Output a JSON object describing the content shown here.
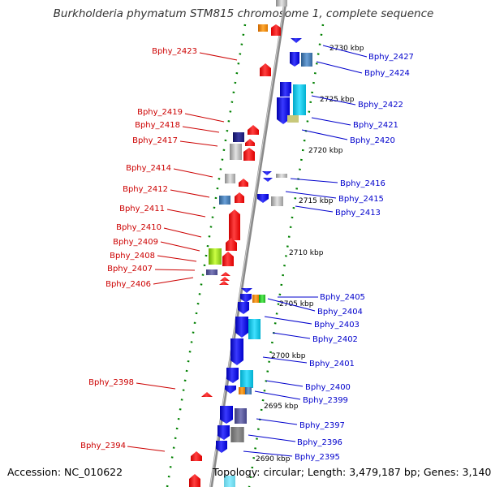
{
  "title": "Burkholderia phymatum STM815 chromosome 1, complete sequence",
  "footer": {
    "accession": "Accession: NC_010622",
    "topology": "Topology: circular; Length: 3,479,187 bp; Genes: 3,140"
  },
  "colors": {
    "forward_gene": "#ff0000",
    "reverse_gene": "#0000ff",
    "left_label": "#cc0000",
    "right_label": "#0000cc",
    "tick": "#008000",
    "backbone": "#888888"
  },
  "scale_labels": [
    "2730 kbp",
    "2725 kbp",
    "2720 kbp",
    "2715 kbp",
    "2710 kbp",
    "2705 kbp",
    "2700 kbp",
    "2695 kbp",
    "2690 kbp"
  ],
  "left_labels": [
    "Bphy_2423",
    "Bphy_2419",
    "Bphy_2418",
    "Bphy_2417",
    "Bphy_2414",
    "Bphy_2412",
    "Bphy_2411",
    "Bphy_2410",
    "Bphy_2409",
    "Bphy_2408",
    "Bphy_2407",
    "Bphy_2406",
    "Bphy_2398",
    "Bphy_2394"
  ],
  "right_labels": [
    "Bphy_2427",
    "Bphy_2424",
    "Bphy_2422",
    "Bphy_2421",
    "Bphy_2420",
    "Bphy_2416",
    "Bphy_2415",
    "Bphy_2413",
    "Bphy_2405",
    "Bphy_2404",
    "Bphy_2403",
    "Bphy_2402",
    "Bphy_2401",
    "Bphy_2400",
    "Bphy_2399",
    "Bphy_2397",
    "Bphy_2396",
    "Bphy_2395"
  ]
}
